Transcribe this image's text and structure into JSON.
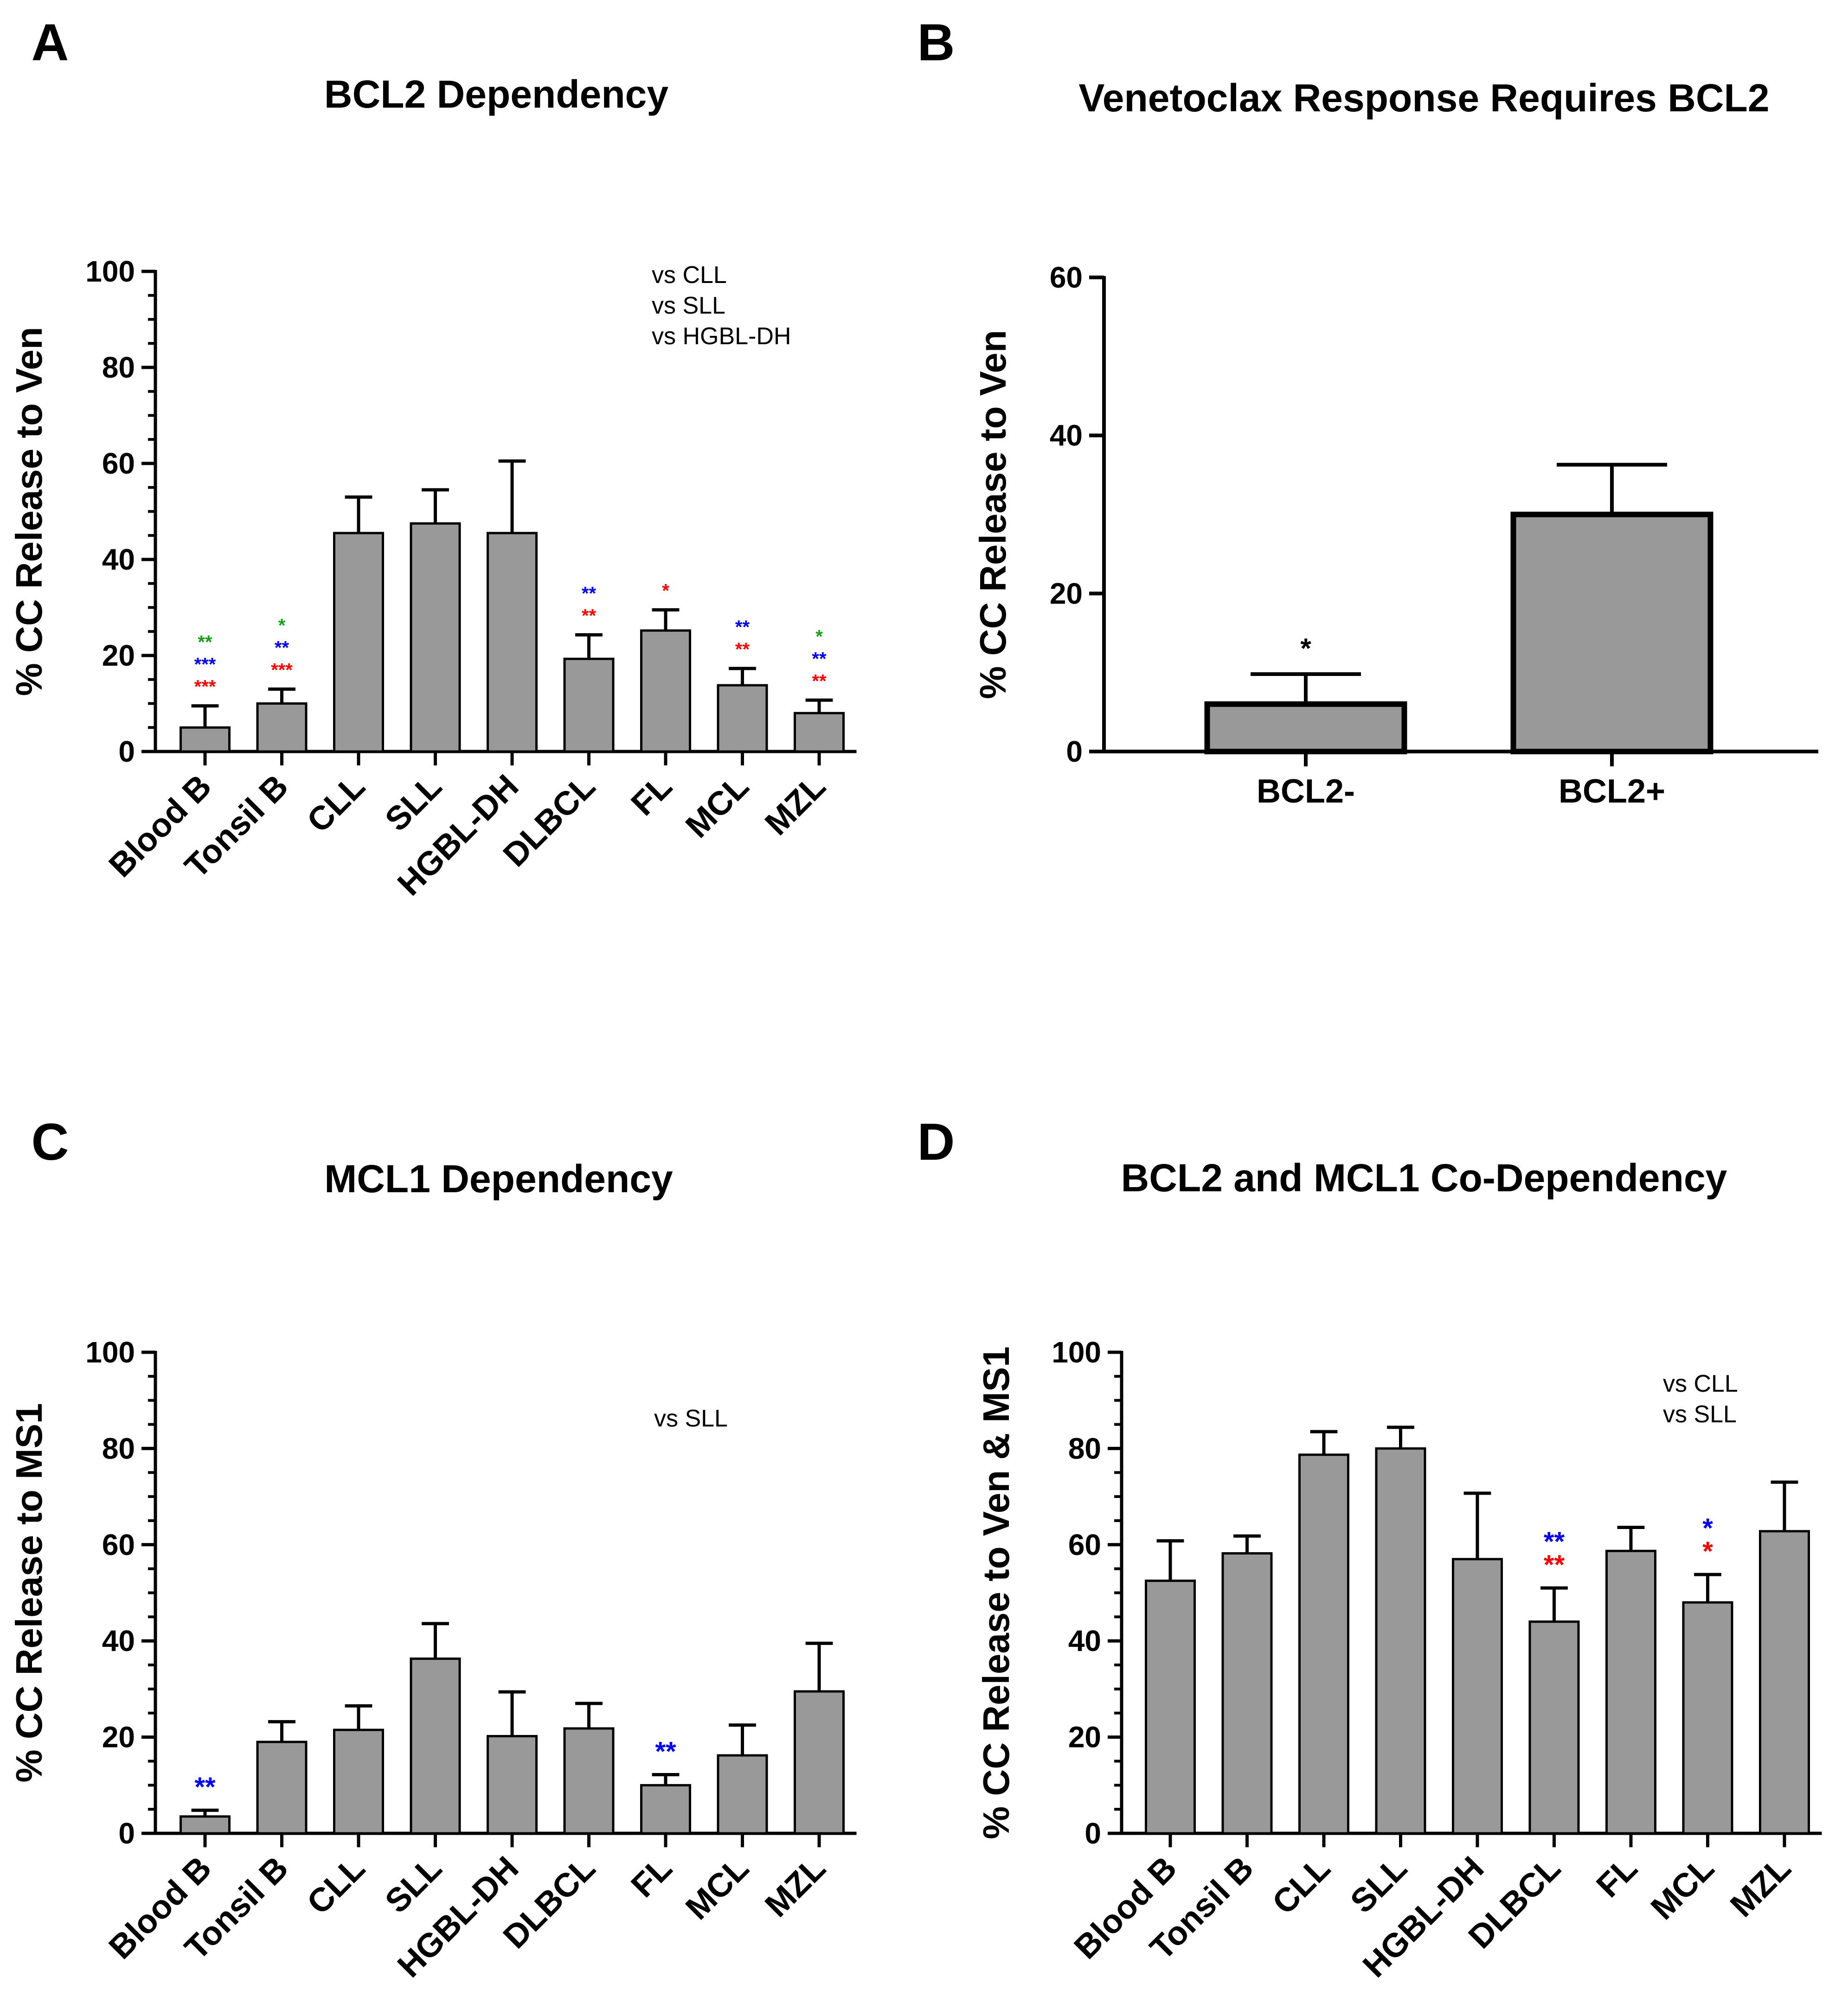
{
  "colors": {
    "bar": "#999999",
    "red": "#ff0000",
    "blue": "#0000ff",
    "green": "#1aa01a",
    "black": "#000000"
  },
  "chart_data": [
    {
      "panel": "A",
      "type": "bar",
      "title": "BCL2 Dependency",
      "ylabel": "% CC  Release to Ven",
      "xlabel": "",
      "ylim": [
        0,
        100
      ],
      "yticks": [
        0,
        20,
        40,
        60,
        80,
        100
      ],
      "categories": [
        "Blood B",
        "Tonsil B",
        "CLL",
        "SLL",
        "HGBL-DH",
        "DLBCL",
        "FL",
        "MCL",
        "MZL"
      ],
      "values": [
        5,
        10,
        45.5,
        47.5,
        45.5,
        19.3,
        25.2,
        13.8,
        8
      ],
      "error": [
        4.5,
        3,
        7.5,
        7,
        15,
        5,
        4.3,
        3.5,
        2.7
      ],
      "legend": [
        {
          "label": "vs CLL",
          "color": "red"
        },
        {
          "label": "vs SLL",
          "color": "blue"
        },
        {
          "label": "vs HGBL-DH",
          "color": "green"
        }
      ],
      "significance": [
        [
          "***",
          "***",
          "**"
        ],
        [
          "***",
          "**",
          "*"
        ],
        [],
        [],
        [],
        [
          "**",
          "**"
        ],
        [
          "*"
        ],
        [
          "**",
          "**"
        ],
        [
          "**",
          "**",
          "*"
        ]
      ],
      "significance_colors": [
        [
          "red",
          "blue",
          "green"
        ],
        [
          "red",
          "blue",
          "green"
        ],
        [],
        [],
        [],
        [
          "red",
          "blue"
        ],
        [
          "red"
        ],
        [
          "red",
          "blue"
        ],
        [
          "red",
          "blue",
          "green"
        ]
      ]
    },
    {
      "panel": "B",
      "type": "bar",
      "title": "Venetoclax Response Requires BCL2",
      "ylabel": "% CC  Release to Ven",
      "xlabel": "",
      "ylim": [
        0,
        60
      ],
      "yticks": [
        0,
        20,
        40,
        60
      ],
      "categories": [
        "BCL2-",
        "BCL2+"
      ],
      "values": [
        6,
        30
      ],
      "error": [
        3.8,
        6.3
      ],
      "legend": [],
      "significance": [
        [
          "*"
        ],
        []
      ],
      "significance_colors": [
        [
          "black"
        ],
        []
      ]
    },
    {
      "panel": "C",
      "type": "bar",
      "title": "MCL1 Dependency",
      "ylabel": "% CC  Release to MS1",
      "xlabel": "",
      "ylim": [
        0,
        100
      ],
      "yticks": [
        0,
        20,
        40,
        60,
        80,
        100
      ],
      "categories": [
        "Blood B",
        "Tonsil B",
        "CLL",
        "SLL",
        "HGBL-DH",
        "DLBCL",
        "FL",
        "MCL",
        "MZL"
      ],
      "values": [
        3.5,
        19,
        21.5,
        36.3,
        20.2,
        21.8,
        10,
        16.2,
        29.5
      ],
      "error": [
        1.3,
        4.2,
        5,
        7.3,
        9.2,
        5.2,
        2.2,
        6.3,
        10
      ],
      "legend": [
        {
          "label": "vs SLL",
          "color": "blue"
        }
      ],
      "significance": [
        [
          "**"
        ],
        [],
        [],
        [],
        [],
        [],
        [
          "**"
        ],
        [],
        []
      ],
      "significance_colors": [
        [
          "blue"
        ],
        [],
        [],
        [],
        [],
        [],
        [
          "blue"
        ],
        [],
        []
      ]
    },
    {
      "panel": "D",
      "type": "bar",
      "title": "BCL2 and MCL1 Co-Dependency",
      "ylabel": "% CC  Release to Ven & MS1",
      "xlabel": "",
      "ylim": [
        0,
        100
      ],
      "yticks": [
        0,
        20,
        40,
        60,
        80,
        100
      ],
      "categories": [
        "Blood B",
        "Tonsil B",
        "CLL",
        "SLL",
        "HGBL-DH",
        "DLBCL",
        "FL",
        "MCL",
        "MZL"
      ],
      "values": [
        52.5,
        58.2,
        78.7,
        80,
        57,
        44,
        58.7,
        48,
        62.8
      ],
      "error": [
        8.3,
        3.6,
        4.8,
        4.4,
        13.7,
        7,
        4.9,
        5.8,
        10.2
      ],
      "legend": [
        {
          "label": "vs CLL",
          "color": "red"
        },
        {
          "label": "vs SLL",
          "color": "blue"
        }
      ],
      "significance": [
        [],
        [],
        [],
        [],
        [],
        [
          "**",
          "**"
        ],
        [],
        [
          "*",
          "*"
        ],
        []
      ],
      "significance_colors": [
        [],
        [],
        [],
        [],
        [],
        [
          "red",
          "blue"
        ],
        [],
        [
          "red",
          "blue"
        ],
        []
      ]
    }
  ]
}
